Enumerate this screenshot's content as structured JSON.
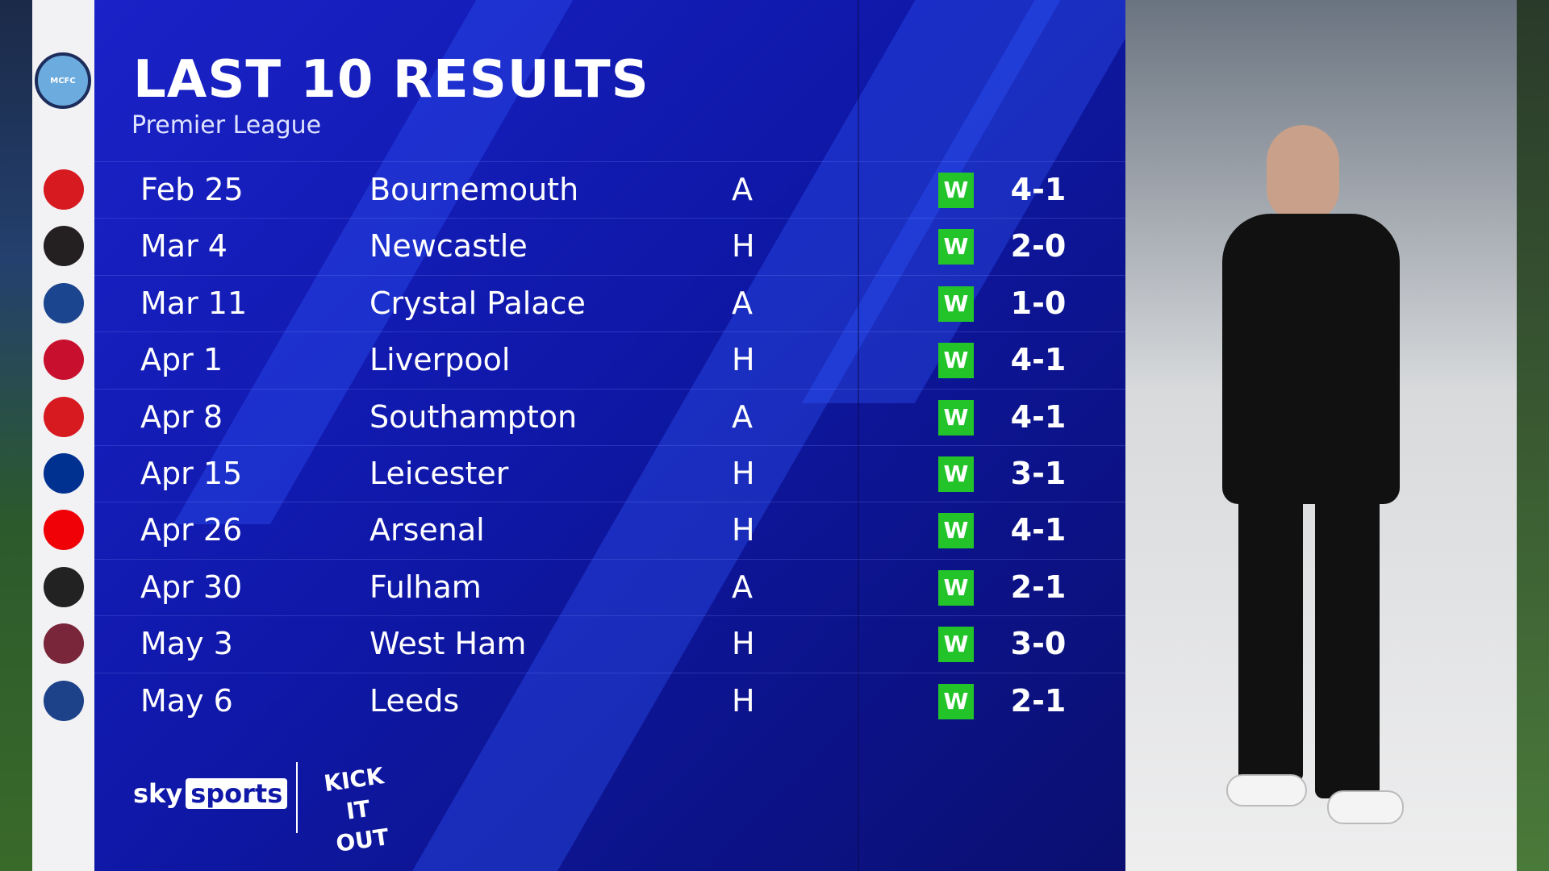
{
  "header": {
    "title": "LAST 10 RESULTS",
    "subtitle": "Premier League"
  },
  "club": {
    "name": "Manchester City",
    "crest_text": "MCFC"
  },
  "results": [
    {
      "date": "Feb 25",
      "opponent": "Bournemouth",
      "venue": "A",
      "result": "W",
      "score": "4-1",
      "crest_color": "#d71920"
    },
    {
      "date": "Mar 4",
      "opponent": "Newcastle",
      "venue": "H",
      "result": "W",
      "score": "2-0",
      "crest_color": "#241f20"
    },
    {
      "date": "Mar 11",
      "opponent": "Crystal Palace",
      "venue": "A",
      "result": "W",
      "score": "1-0",
      "crest_color": "#1b458f"
    },
    {
      "date": "Apr 1",
      "opponent": "Liverpool",
      "venue": "H",
      "result": "W",
      "score": "4-1",
      "crest_color": "#c8102e"
    },
    {
      "date": "Apr 8",
      "opponent": "Southampton",
      "venue": "A",
      "result": "W",
      "score": "4-1",
      "crest_color": "#d71920"
    },
    {
      "date": "Apr 15",
      "opponent": "Leicester",
      "venue": "H",
      "result": "W",
      "score": "3-1",
      "crest_color": "#003090"
    },
    {
      "date": "Apr 26",
      "opponent": "Arsenal",
      "venue": "H",
      "result": "W",
      "score": "4-1",
      "crest_color": "#ef0107"
    },
    {
      "date": "Apr 30",
      "opponent": "Fulham",
      "venue": "A",
      "result": "W",
      "score": "2-1",
      "crest_color": "#222222"
    },
    {
      "date": "May 3",
      "opponent": "West Ham",
      "venue": "H",
      "result": "W",
      "score": "3-0",
      "crest_color": "#7a263a"
    },
    {
      "date": "May 6",
      "opponent": "Leeds",
      "venue": "H",
      "result": "W",
      "score": "2-1",
      "crest_color": "#1d428a"
    }
  ],
  "colors": {
    "win": "#22c42a",
    "panel": "#1a22c8"
  },
  "branding": {
    "broadcaster_a": "sky",
    "broadcaster_b": "sports",
    "campaign": "KICK IT OUT"
  }
}
